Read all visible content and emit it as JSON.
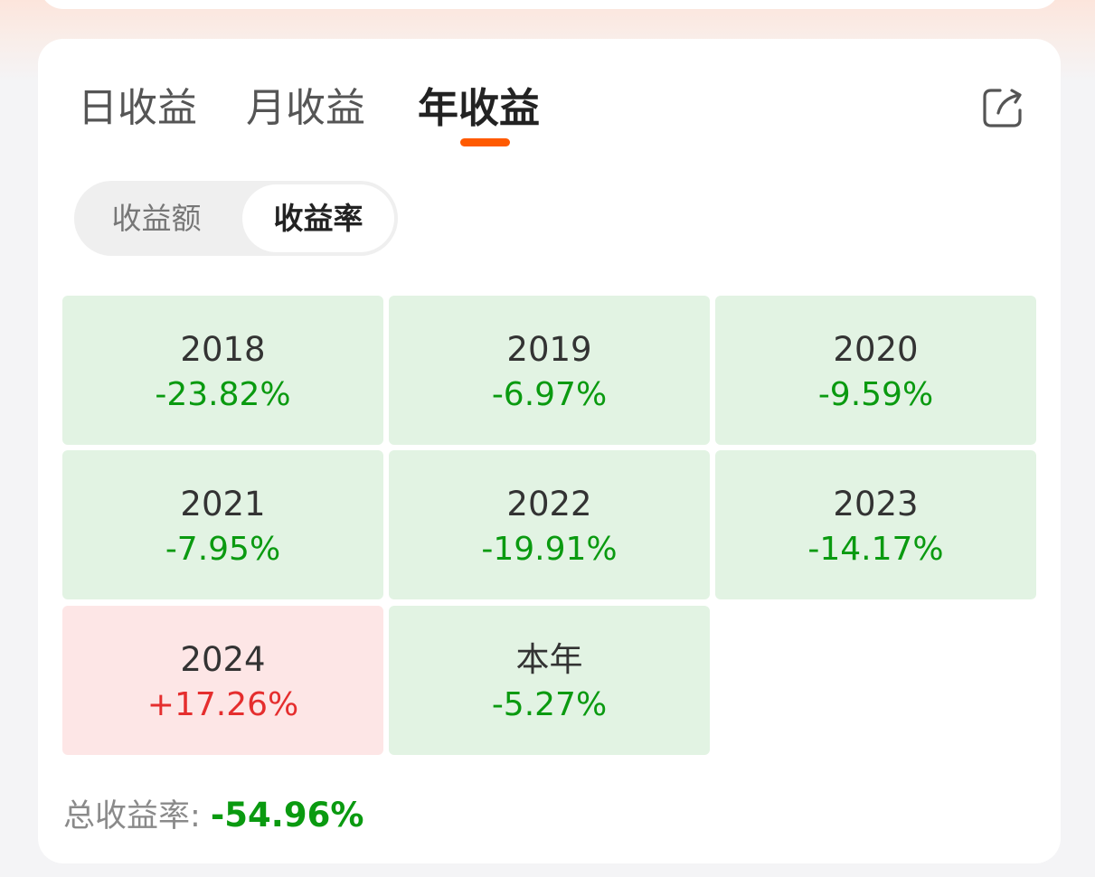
{
  "tabs": [
    {
      "label": "日收益",
      "active": false
    },
    {
      "label": "月收益",
      "active": false
    },
    {
      "label": "年收益",
      "active": true
    }
  ],
  "accent_color": "#ff5a00",
  "share_icon": "share-icon",
  "segment": {
    "amount_label": "收益额",
    "rate_label": "收益率",
    "selected": "收益率"
  },
  "colors": {
    "negative": "#0a9a10",
    "positive": "#e52e2e",
    "negative_bg": "#e2f3e3",
    "positive_bg": "#fde6e6"
  },
  "returns": [
    {
      "year": "2018",
      "rate": "-23.82%"
    },
    {
      "year": "2019",
      "rate": "-6.97%"
    },
    {
      "year": "2020",
      "rate": "-9.59%"
    },
    {
      "year": "2021",
      "rate": "-7.95%"
    },
    {
      "year": "2022",
      "rate": "-19.91%"
    },
    {
      "year": "2023",
      "rate": "-14.17%"
    },
    {
      "year": "2024",
      "rate": "+17.26%"
    },
    {
      "year": "本年",
      "rate": "-5.27%"
    }
  ],
  "total": {
    "label": "总收益率: ",
    "value": "-54.96%"
  }
}
